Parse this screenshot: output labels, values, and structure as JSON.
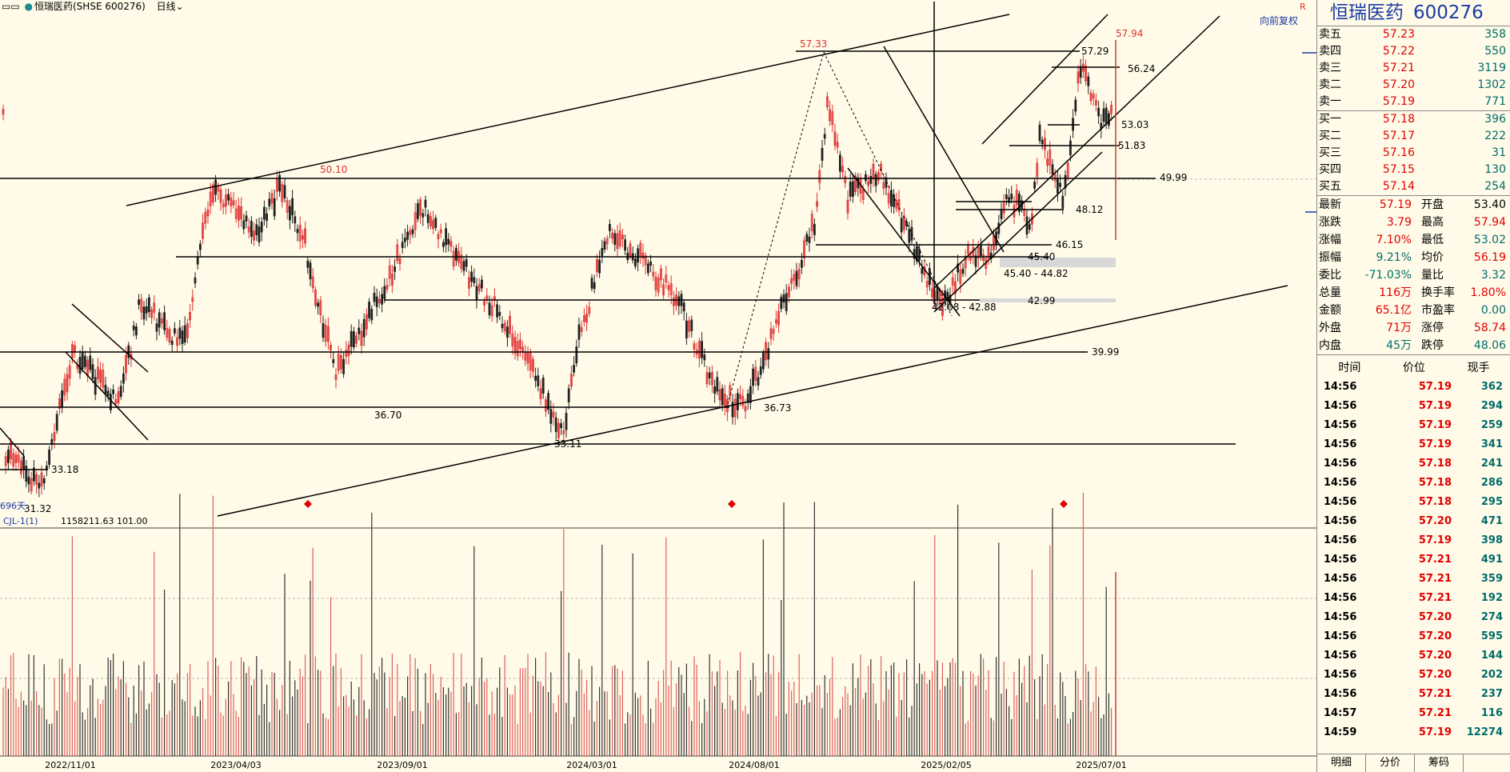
{
  "header": {
    "stock": "恒瑞医药(SHSE 600276)",
    "period": "日线"
  },
  "chart_labels": {
    "restore": "向前复权",
    "days": "696天",
    "indicator": "CJL-1(1)",
    "indicator_values": "1158211.63   101.00",
    "price_marks": [
      "57.94",
      "57.33",
      "57.29",
      "56.24",
      "53.03",
      "51.83",
      "50.10",
      "49.99",
      "48.12",
      "46.15",
      "45.40",
      "45.40 - 44.82",
      "42.99",
      "42.08 - 42.88",
      "39.99",
      "36.73",
      "36.70",
      "33.18",
      "33.11",
      "31.32"
    ],
    "date_ticks": [
      "2022/11/01",
      "2023/04/03",
      "2023/09/01",
      "2024/03/01",
      "2024/08/01",
      "2025/02/05",
      "2025/07/01"
    ]
  },
  "side": {
    "name": "恒瑞医药",
    "code": "600276",
    "asks": [
      {
        "label": "卖五",
        "price": "57.23",
        "vol": "358"
      },
      {
        "label": "卖四",
        "price": "57.22",
        "vol": "550"
      },
      {
        "label": "卖三",
        "price": "57.21",
        "vol": "3119"
      },
      {
        "label": "卖二",
        "price": "57.20",
        "vol": "1302"
      },
      {
        "label": "卖一",
        "price": "57.19",
        "vol": "771"
      }
    ],
    "bids": [
      {
        "label": "买一",
        "price": "57.18",
        "vol": "396"
      },
      {
        "label": "买二",
        "price": "57.17",
        "vol": "222"
      },
      {
        "label": "买三",
        "price": "57.16",
        "vol": "31"
      },
      {
        "label": "买四",
        "price": "57.15",
        "vol": "130"
      },
      {
        "label": "买五",
        "price": "57.14",
        "vol": "254"
      }
    ],
    "quote": [
      {
        "l1": "最新",
        "v1": "57.19",
        "c1": "red",
        "l2": "开盘",
        "v2": "53.40",
        "c2": "blk"
      },
      {
        "l1": "涨跌",
        "v1": "3.79",
        "c1": "red",
        "l2": "最高",
        "v2": "57.94",
        "c2": "red"
      },
      {
        "l1": "涨幅",
        "v1": "7.10%",
        "c1": "red",
        "l2": "最低",
        "v2": "53.02",
        "c2": "teal"
      },
      {
        "l1": "振幅",
        "v1": "9.21%",
        "c1": "teal",
        "l2": "均价",
        "v2": "56.19",
        "c2": "red"
      },
      {
        "l1": "委比",
        "v1": "-71.03%",
        "c1": "teal",
        "l2": "量比",
        "v2": "3.32",
        "c2": "teal"
      },
      {
        "l1": "总量",
        "v1": "116万",
        "c1": "red",
        "l2": "换手率",
        "v2": "1.80%",
        "c2": "red"
      },
      {
        "l1": "金额",
        "v1": "65.1亿",
        "c1": "red",
        "l2": "市盈率",
        "v2": "0.00",
        "c2": "teal"
      },
      {
        "l1": "外盘",
        "v1": "71万",
        "c1": "red",
        "l2": "涨停",
        "v2": "58.74",
        "c2": "red"
      },
      {
        "l1": "内盘",
        "v1": "45万",
        "c1": "teal",
        "l2": "跌停",
        "v2": "48.06",
        "c2": "teal"
      }
    ],
    "tick_header": [
      "时间",
      "价位",
      "现手"
    ],
    "ticks": [
      [
        "14:56",
        "57.19",
        "362"
      ],
      [
        "14:56",
        "57.19",
        "294"
      ],
      [
        "14:56",
        "57.19",
        "259"
      ],
      [
        "14:56",
        "57.19",
        "341"
      ],
      [
        "14:56",
        "57.18",
        "241"
      ],
      [
        "14:56",
        "57.18",
        "286"
      ],
      [
        "14:56",
        "57.18",
        "295"
      ],
      [
        "14:56",
        "57.20",
        "471"
      ],
      [
        "14:56",
        "57.19",
        "398"
      ],
      [
        "14:56",
        "57.21",
        "491"
      ],
      [
        "14:56",
        "57.21",
        "359"
      ],
      [
        "14:56",
        "57.21",
        "192"
      ],
      [
        "14:56",
        "57.20",
        "274"
      ],
      [
        "14:56",
        "57.20",
        "595"
      ],
      [
        "14:56",
        "57.20",
        "144"
      ],
      [
        "14:56",
        "57.20",
        "202"
      ],
      [
        "14:56",
        "57.21",
        "237"
      ],
      [
        "14:57",
        "57.21",
        "116"
      ],
      [
        "14:59",
        "57.19",
        "12274"
      ]
    ],
    "tabs": [
      "明细",
      "分价",
      "筹码"
    ]
  }
}
